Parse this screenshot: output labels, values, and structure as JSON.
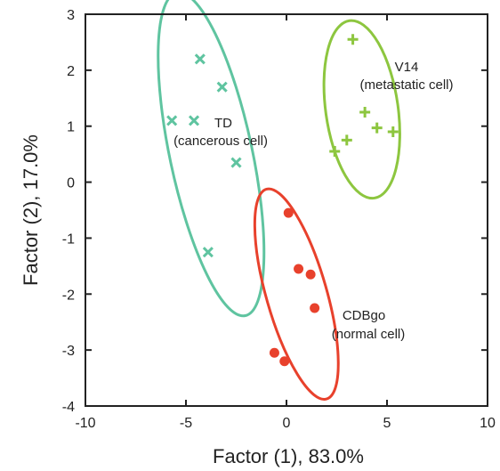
{
  "chart_data": {
    "type": "scatter",
    "xlabel": "Factor (1), 83.0%",
    "ylabel": "Factor (2), 17.0%",
    "xlim": [
      -10,
      10
    ],
    "ylim": [
      -4,
      3
    ],
    "xticks": [
      -10,
      -5,
      0,
      5,
      10
    ],
    "yticks": [
      -4,
      -3,
      -2,
      -1,
      0,
      1,
      2,
      3
    ],
    "xtick_labels": [
      "-10",
      "-5",
      "0",
      "5",
      "10"
    ],
    "ytick_labels": [
      "-4",
      "-3",
      "-2",
      "-1",
      "0",
      "1",
      "2",
      "3"
    ],
    "grid": false,
    "legend": "none",
    "series": [
      {
        "key": "td",
        "marker": "x",
        "color": "#5fc4a0",
        "annotation": [
          "TD",
          "(cancerous cell)"
        ],
        "points": [
          [
            -4.3,
            2.2
          ],
          [
            -3.2,
            1.7
          ],
          [
            -5.7,
            1.1
          ],
          [
            -4.6,
            1.1
          ],
          [
            -2.5,
            0.35
          ],
          [
            -3.9,
            -1.25
          ]
        ],
        "ellipse": {
          "cx": -3.75,
          "cy": 0.5,
          "rx": 2.05,
          "ry": 2.95,
          "angle_deg": -12
        }
      },
      {
        "key": "v14",
        "marker": "+",
        "color": "#8dc63f",
        "annotation": [
          "V14",
          "(metastatic cell)"
        ],
        "points": [
          [
            3.3,
            2.55
          ],
          [
            3.9,
            1.25
          ],
          [
            4.5,
            0.97
          ],
          [
            5.3,
            0.9
          ],
          [
            3.0,
            0.75
          ],
          [
            2.4,
            0.55
          ]
        ],
        "ellipse": {
          "cx": 3.75,
          "cy": 1.3,
          "rx": 1.8,
          "ry": 1.6,
          "angle_deg": -8
        }
      },
      {
        "key": "cdbgo",
        "marker": "o",
        "color": "#e8412c",
        "annotation": [
          "CDBgo",
          "(normal cell)"
        ],
        "points": [
          [
            0.1,
            -0.55
          ],
          [
            0.6,
            -1.55
          ],
          [
            1.2,
            -1.65
          ],
          [
            1.4,
            -2.25
          ],
          [
            -0.6,
            -3.05
          ],
          [
            -0.1,
            -3.2
          ]
        ],
        "ellipse": {
          "cx": 0.5,
          "cy": -2.0,
          "rx": 1.5,
          "ry": 1.95,
          "angle_deg": -16
        }
      }
    ]
  }
}
